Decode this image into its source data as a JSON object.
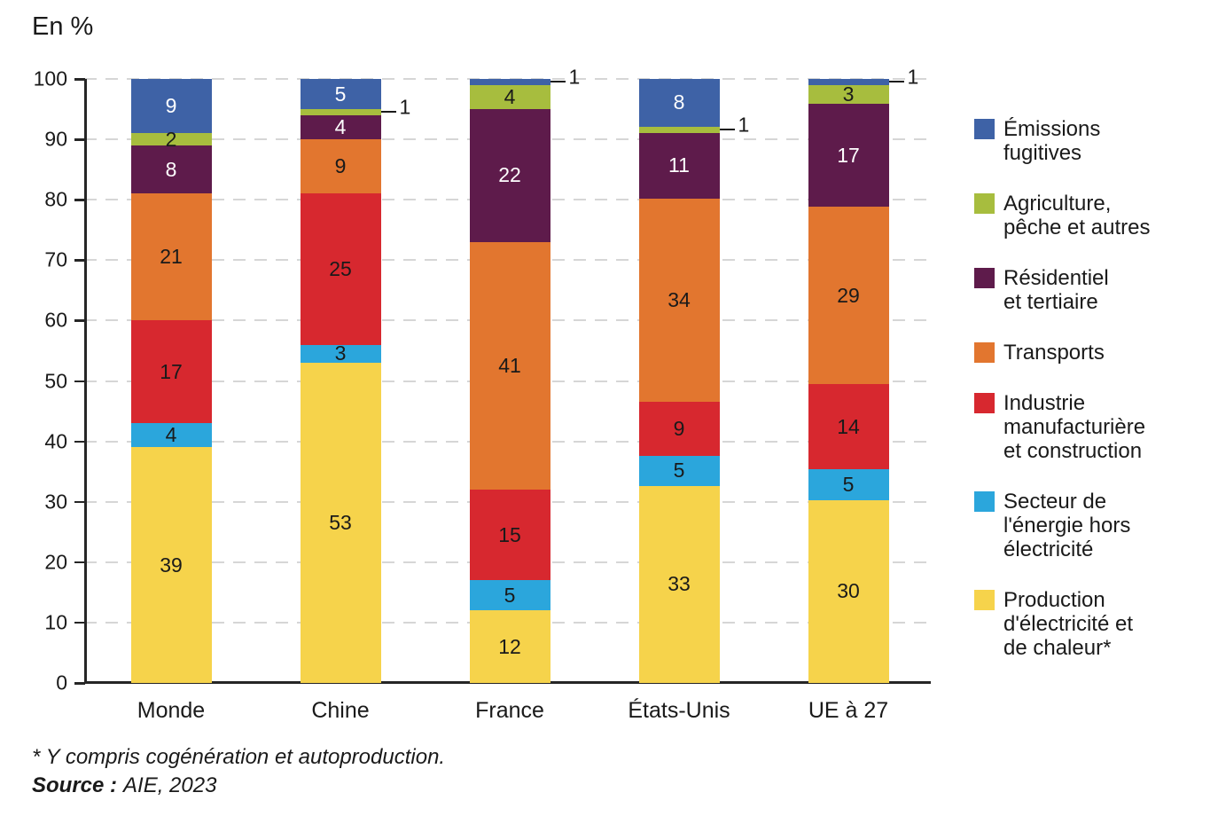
{
  "footnote": "* Y compris cogénération et autoproduction.",
  "source_label": "Source :",
  "source_value": "AIE, 2023",
  "axis_color": "#262626",
  "grid_color": "#d6d6d6",
  "chart_data": {
    "type": "bar",
    "stacked": true,
    "title": "En %",
    "unit": "%",
    "categories": [
      "Monde",
      "Chine",
      "France",
      "États-Unis",
      "UE à 27"
    ],
    "series": [
      {
        "name": "Production d'électricité et de chaleur*",
        "legend_label": "Production\nd'électricité et\nde chaleur*",
        "color": "#f6d34b",
        "label_color": "#1a1a1a",
        "values": [
          39,
          53,
          12,
          33,
          30
        ]
      },
      {
        "name": "Secteur de l'énergie hors électricité",
        "legend_label": "Secteur de\nl'énergie hors\nélectricité",
        "color": "#2ba6dc",
        "label_color": "#1a1a1a",
        "values": [
          4,
          3,
          5,
          5,
          5
        ]
      },
      {
        "name": "Industrie manufacturière et construction",
        "legend_label": "Industrie\nmanufacturière\net construction",
        "color": "#d7282f",
        "label_color": "#1a1a1a",
        "values": [
          17,
          25,
          15,
          9,
          14
        ]
      },
      {
        "name": "Transports",
        "legend_label": "Transports",
        "color": "#e2762f",
        "label_color": "#1a1a1a",
        "values": [
          21,
          9,
          41,
          34,
          29
        ]
      },
      {
        "name": "Résidentiel et tertiaire",
        "legend_label": "Résidentiel\net tertiaire",
        "color": "#5e1b4b",
        "label_color": "#ffffff",
        "values": [
          8,
          4,
          22,
          11,
          17
        ]
      },
      {
        "name": "Agriculture, pêche et autres",
        "legend_label": "Agriculture,\npêche et autres",
        "color": "#a7bd3e",
        "label_color": "#1a1a1a",
        "values": [
          2,
          1,
          4,
          1,
          3
        ]
      },
      {
        "name": "Émissions fugitives",
        "legend_label": "Émissions\nfugitives",
        "color": "#3e62a6",
        "label_color": "#ffffff",
        "values": [
          9,
          5,
          1,
          8,
          1
        ]
      }
    ],
    "ylim": [
      0,
      100
    ],
    "yticks": [
      0,
      10,
      20,
      30,
      40,
      50,
      60,
      70,
      80,
      90,
      100
    ],
    "grid": "horizontal-dashed",
    "legend_position": "right",
    "legend_order": "top-of-stack-first",
    "outside_label_threshold": 2,
    "outside_label_value": "1"
  }
}
